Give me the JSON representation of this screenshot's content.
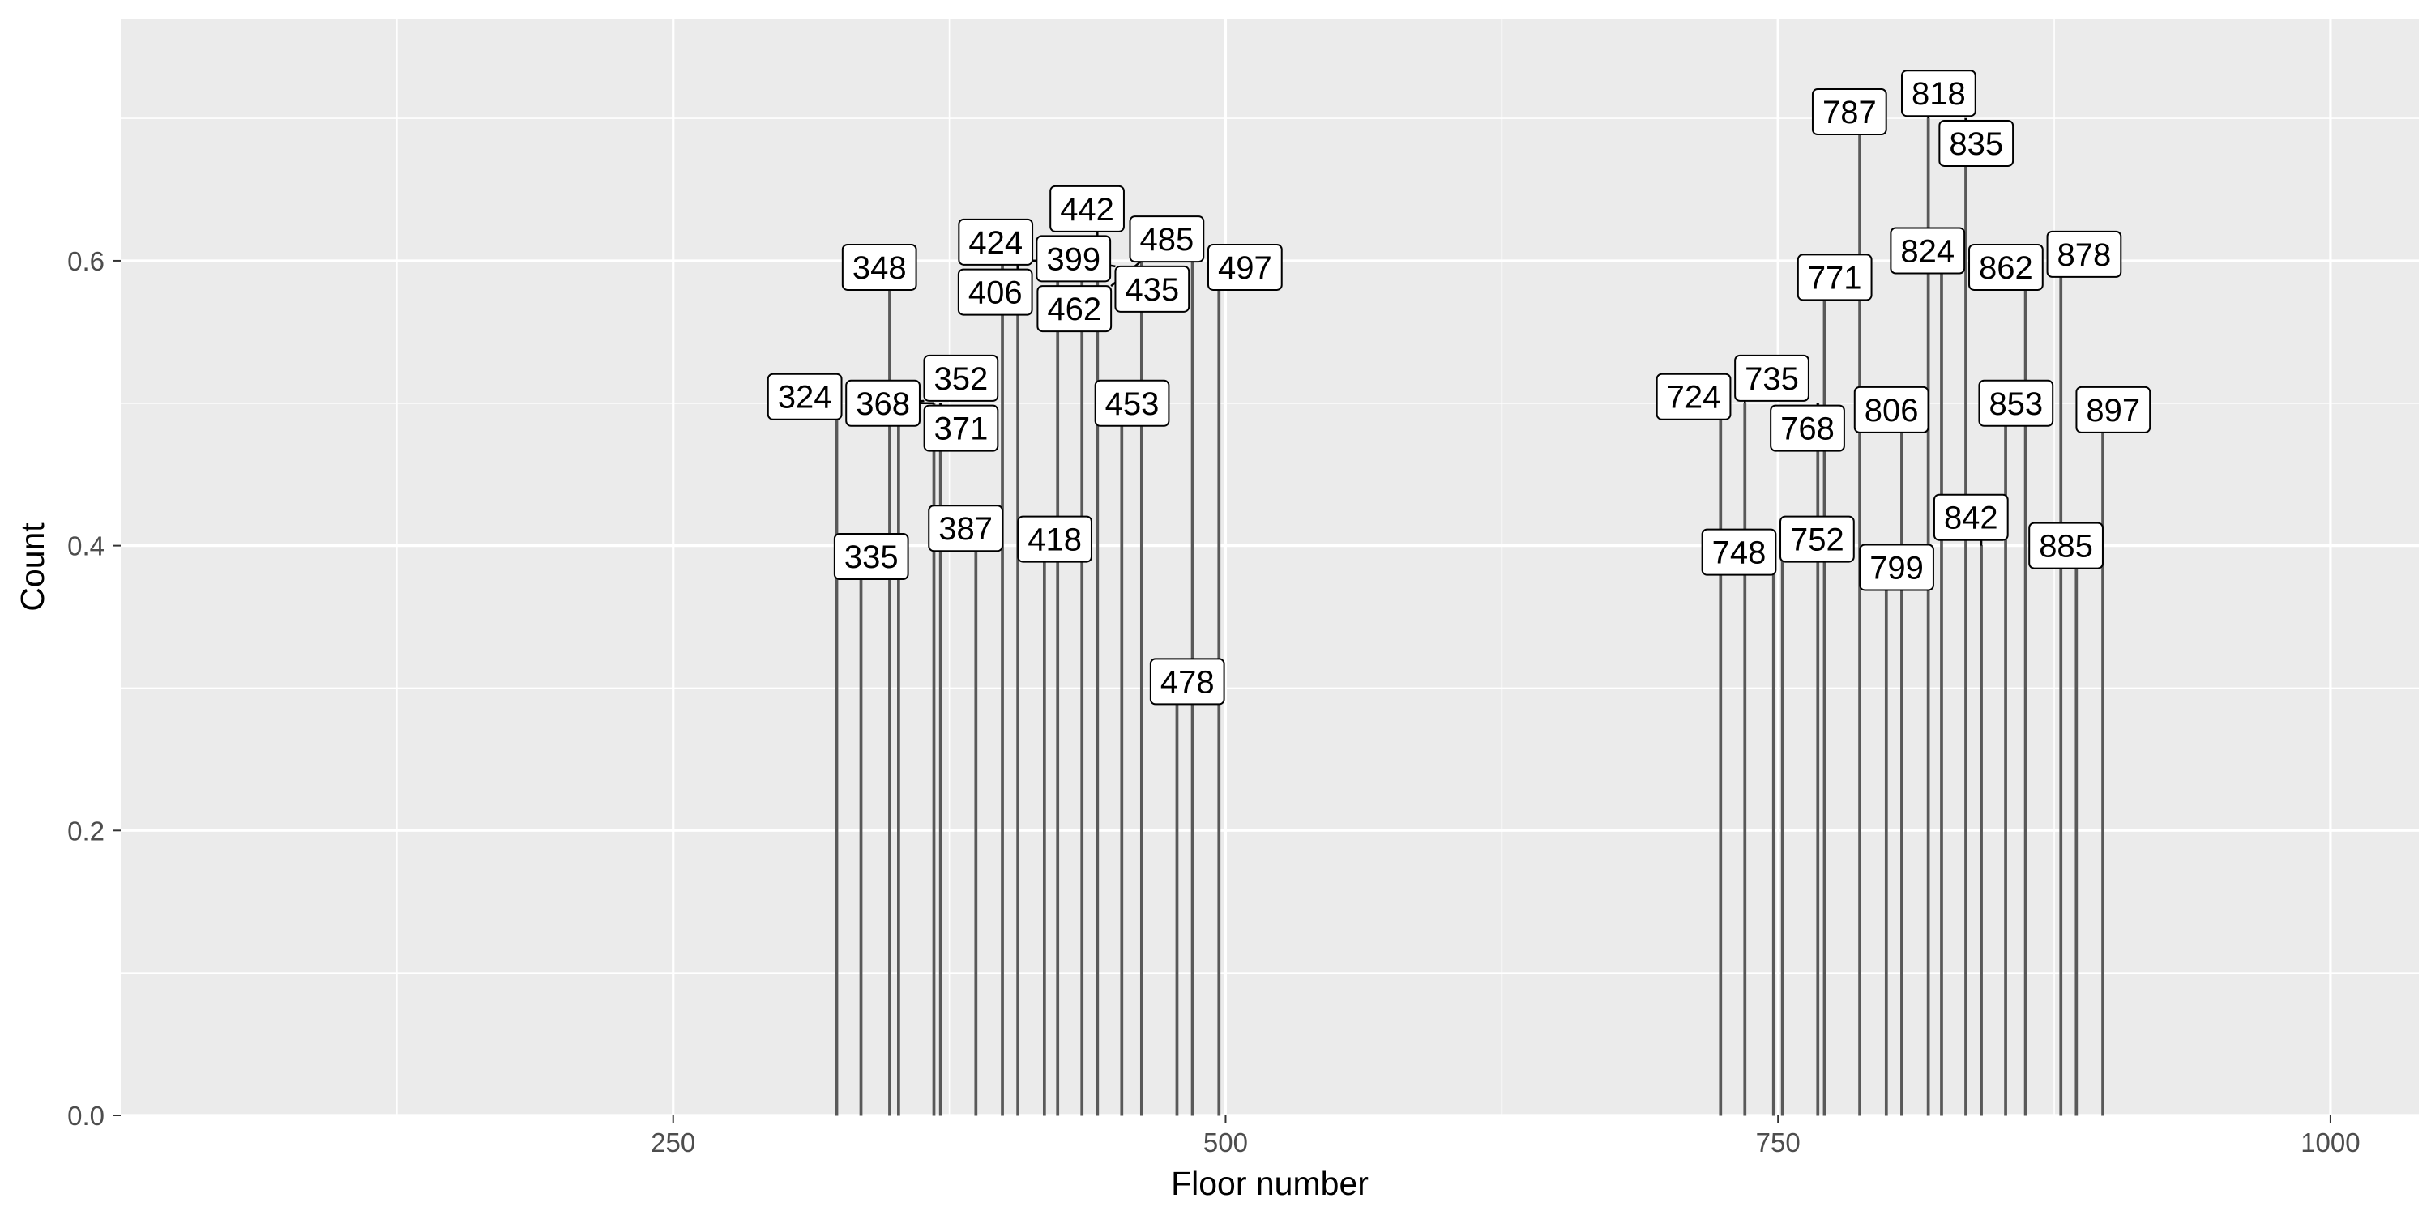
{
  "chart_data": {
    "type": "bar",
    "title": "",
    "xlabel": "Floor number",
    "ylabel": "Count",
    "xlim": [
      0,
      1040
    ],
    "ylim": [
      0,
      0.77
    ],
    "x_ticks": [
      250,
      500,
      750,
      1000
    ],
    "x_tick_labels": [
      "250",
      "500",
      "750",
      "1000"
    ],
    "y_ticks": [
      0.0,
      0.2,
      0.4,
      0.6
    ],
    "y_tick_labels": [
      "0.0",
      "0.2",
      "0.4",
      "0.6"
    ],
    "grid": true,
    "legend": "none",
    "colors": {
      "panel_background": "#EBEBEB",
      "grid_major": "#FFFFFF",
      "bar_outline": "#595959",
      "label_border": "#000000",
      "label_fill": "#FFFFFF",
      "tick_text": "#4D4D4D"
    },
    "bars": [
      {
        "x": 324,
        "y": 0.5,
        "label": "324"
      },
      {
        "x": 335,
        "y": 0.4,
        "label": "335"
      },
      {
        "x": 348,
        "y": 0.6,
        "label": "348"
      },
      {
        "x": 352,
        "y": 0.5,
        "label": "352"
      },
      {
        "x": 368,
        "y": 0.5,
        "label": "368"
      },
      {
        "x": 371,
        "y": 0.5,
        "label": "371"
      },
      {
        "x": 387,
        "y": 0.4,
        "label": "387"
      },
      {
        "x": 399,
        "y": 0.6,
        "label": "399"
      },
      {
        "x": 406,
        "y": 0.6,
        "label": "406"
      },
      {
        "x": 418,
        "y": 0.4,
        "label": "418"
      },
      {
        "x": 424,
        "y": 0.6,
        "label": "424"
      },
      {
        "x": 435,
        "y": 0.6,
        "label": "435"
      },
      {
        "x": 442,
        "y": 0.6,
        "label": "442"
      },
      {
        "x": 453,
        "y": 0.5,
        "label": "453"
      },
      {
        "x": 462,
        "y": 0.6,
        "label": "462"
      },
      {
        "x": 478,
        "y": 0.3,
        "label": "478"
      },
      {
        "x": 485,
        "y": 0.6,
        "label": "485"
      },
      {
        "x": 497,
        "y": 0.6,
        "label": "497"
      },
      {
        "x": 724,
        "y": 0.5,
        "label": "724"
      },
      {
        "x": 735,
        "y": 0.5,
        "label": "735"
      },
      {
        "x": 748,
        "y": 0.4,
        "label": "748"
      },
      {
        "x": 752,
        "y": 0.4,
        "label": "752"
      },
      {
        "x": 768,
        "y": 0.5,
        "label": "768"
      },
      {
        "x": 771,
        "y": 0.6,
        "label": "771"
      },
      {
        "x": 787,
        "y": 0.7,
        "label": "787"
      },
      {
        "x": 799,
        "y": 0.4,
        "label": "799"
      },
      {
        "x": 806,
        "y": 0.5,
        "label": "806"
      },
      {
        "x": 818,
        "y": 0.7,
        "label": "818"
      },
      {
        "x": 824,
        "y": 0.6,
        "label": "824"
      },
      {
        "x": 835,
        "y": 0.7,
        "label": "835"
      },
      {
        "x": 842,
        "y": 0.4,
        "label": "842"
      },
      {
        "x": 853,
        "y": 0.5,
        "label": "853"
      },
      {
        "x": 862,
        "y": 0.6,
        "label": "862"
      },
      {
        "x": 878,
        "y": 0.6,
        "label": "878"
      },
      {
        "x": 885,
        "y": 0.4,
        "label": "885"
      },
      {
        "x": 897,
        "y": 0.5,
        "label": "897"
      }
    ]
  }
}
